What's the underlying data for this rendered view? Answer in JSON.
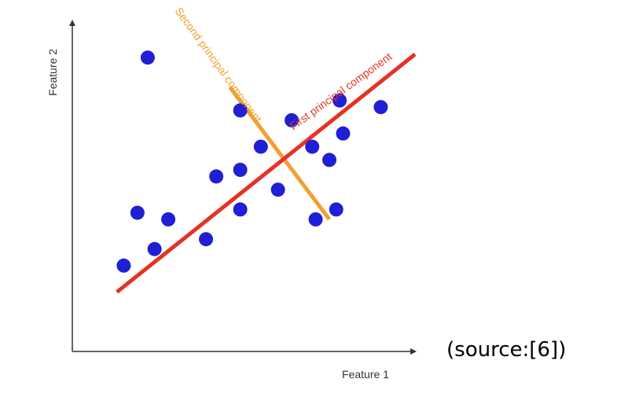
{
  "diagram": {
    "x_axis_label": "Feature 1",
    "y_axis_label": "Feature 2",
    "first_component_label": "First principal component",
    "second_component_label": "Second principal component",
    "source_label": "(source:[6])",
    "colors": {
      "axis": "#333333",
      "points": "#1f1fd6",
      "first_component": "#e63224",
      "second_component": "#f0a030",
      "first_label_text": "#e63224",
      "second_label_text": "#f0a030"
    }
  },
  "chart_data": {
    "type": "scatter",
    "xlabel": "Feature 1",
    "ylabel": "Feature 2",
    "xlim": [
      0,
      10
    ],
    "ylim": [
      0,
      10
    ],
    "points": [
      {
        "x": 2.2,
        "y": 8.9
      },
      {
        "x": 4.9,
        "y": 7.3
      },
      {
        "x": 6.4,
        "y": 7.0
      },
      {
        "x": 7.8,
        "y": 7.6
      },
      {
        "x": 9.0,
        "y": 7.4
      },
      {
        "x": 5.5,
        "y": 6.2
      },
      {
        "x": 7.0,
        "y": 6.2
      },
      {
        "x": 7.9,
        "y": 6.6
      },
      {
        "x": 4.2,
        "y": 5.3
      },
      {
        "x": 4.9,
        "y": 5.5
      },
      {
        "x": 7.5,
        "y": 5.8
      },
      {
        "x": 6.0,
        "y": 4.9
      },
      {
        "x": 2.8,
        "y": 4.0
      },
      {
        "x": 1.9,
        "y": 4.2
      },
      {
        "x": 4.9,
        "y": 4.3
      },
      {
        "x": 3.9,
        "y": 3.4
      },
      {
        "x": 7.1,
        "y": 4.0
      },
      {
        "x": 7.7,
        "y": 4.3
      },
      {
        "x": 2.4,
        "y": 3.1
      },
      {
        "x": 1.5,
        "y": 2.6
      }
    ],
    "first_principal_component": {
      "x1": 1.3,
      "y1": 1.8,
      "x2": 10.0,
      "y2": 9.0
    },
    "second_principal_component": {
      "x1": 4.6,
      "y1": 8.0,
      "x2": 7.5,
      "y2": 4.0
    }
  }
}
